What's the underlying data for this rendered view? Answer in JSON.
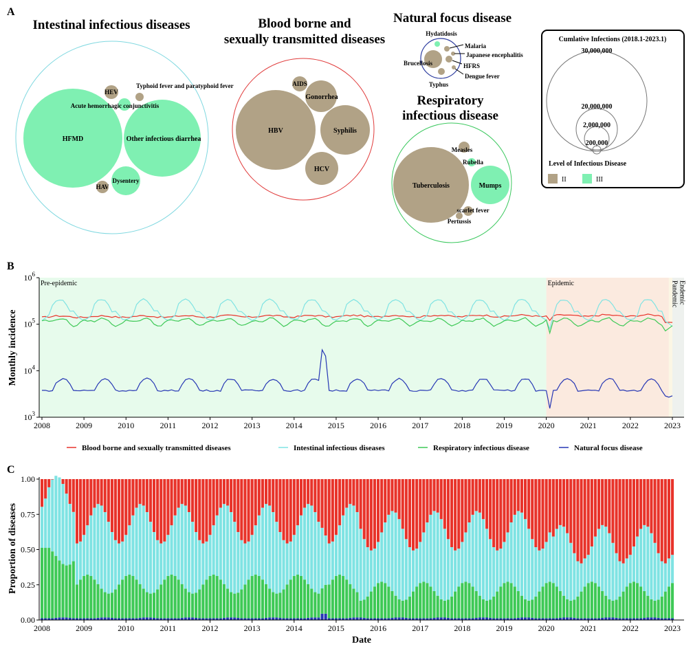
{
  "panel_labels": {
    "a": "A",
    "b": "B",
    "c": "C"
  },
  "panel_a": {
    "groups": [
      {
        "title_lines": [
          "Intestinal infectious diseases"
        ],
        "ring_color": "#7fd8e0",
        "bubbles": [
          {
            "label": "HFMD",
            "level": "III"
          },
          {
            "label": "Other infectious diarrhea",
            "level": "III"
          },
          {
            "label": "Dysentery",
            "level": "III"
          },
          {
            "label": "Acute hemorrhagic conjunctivitis",
            "level": "III"
          },
          {
            "label": "HEV",
            "level": "II"
          },
          {
            "label": "HAV",
            "level": "II"
          },
          {
            "label": "Typhoid fever and paratyphoid fever",
            "level": "II"
          }
        ]
      },
      {
        "title_lines": [
          "Blood borne and",
          "sexually transmitted diseases"
        ],
        "ring_color": "#e03a3a",
        "bubbles": [
          {
            "label": "HBV",
            "level": "II"
          },
          {
            "label": "Syphilis",
            "level": "II"
          },
          {
            "label": "Gonorrhea",
            "level": "II"
          },
          {
            "label": "HCV",
            "level": "II"
          },
          {
            "label": "AIDS",
            "level": "II"
          }
        ]
      },
      {
        "title_lines": [
          "Natural focus disease"
        ],
        "ring_color": "#2a3a9e",
        "bubbles": [
          {
            "label": "Brucellosis",
            "level": "II"
          },
          {
            "label": "Hydatidosis",
            "level": "III"
          },
          {
            "label": "Malaria",
            "level": "II"
          },
          {
            "label": "Japanese encephalitis",
            "level": "II"
          },
          {
            "label": "HFRS",
            "level": "II"
          },
          {
            "label": "Dengue fever",
            "level": "II"
          },
          {
            "label": "Typhus",
            "level": "II"
          }
        ]
      },
      {
        "title_lines": [
          "Respiratory",
          "infectious disease"
        ],
        "ring_color": "#3bc85e",
        "bubbles": [
          {
            "label": "Tuberculosis",
            "level": "II"
          },
          {
            "label": "Mumps",
            "level": "III"
          },
          {
            "label": "Measles",
            "level": "II"
          },
          {
            "label": "Rubella",
            "level": "III"
          },
          {
            "label": "scarlet fever",
            "level": "II"
          },
          {
            "label": "Pertussis",
            "level": "II"
          }
        ]
      }
    ],
    "size_legend": {
      "title": "Cumlative Infections (2018.1-2023.1)",
      "values": [
        "30,000,000",
        "20,000,000",
        "2,000,000",
        "200,000"
      ],
      "level_title": "Level of Infectious Disease",
      "levels": [
        {
          "label": "II",
          "color": "#b1a286"
        },
        {
          "label": "III",
          "color": "#7ff0b2"
        }
      ]
    }
  },
  "chart_data": [
    {
      "type": "line",
      "panel": "B",
      "ylabel": "Monthly incidence",
      "yscale": "log",
      "ylim": [
        1000,
        1000000
      ],
      "y_ticks": [
        "10^3",
        "10^4",
        "10^5",
        "10^6"
      ],
      "x_ticks": [
        "2008",
        "2009",
        "2010",
        "2011",
        "2012",
        "2013",
        "2014",
        "2015",
        "2016",
        "2017",
        "2018",
        "2019",
        "2020",
        "2021",
        "2022",
        "2023"
      ],
      "xlim": [
        "2008-01",
        "2023-01"
      ],
      "periods": [
        {
          "label": "Pre-epidemic",
          "start": "2008-01",
          "end": "2019-12",
          "color": "#e7fbec"
        },
        {
          "label": "Epidemic",
          "start": "2020-01",
          "end": "2022-11",
          "color": "#fbeadf"
        },
        {
          "label": "Pandemic",
          "start": "2022-12",
          "end": "2022-12",
          "color": "#fbf6e4"
        },
        {
          "label": "Endemic",
          "start": "2023-01",
          "end": "2023-01",
          "color": "#eef1ee"
        }
      ],
      "series": [
        {
          "name": "Blood borne and sexually transmitted diseases",
          "color": "#e8332a",
          "base": 145000,
          "amp": 0.04,
          "trend": 0.004,
          "covid": 0.8
        },
        {
          "name": "Intestinal infectious diseases",
          "color": "#7fe3e3",
          "base": 190000,
          "amp": 0.36,
          "trend": 0.0,
          "covid": 0.6
        },
        {
          "name": "Respiratory infectious disease",
          "color": "#3ec956",
          "base": 115000,
          "amp": 0.12,
          "trend": 0.0,
          "covid": 0.55
        },
        {
          "name": "Natural focus disease",
          "color": "#2536b4",
          "base": 5000,
          "amp": 0.18,
          "trend": 0.0,
          "covid": 0.4
        }
      ]
    },
    {
      "type": "bar",
      "panel": "C",
      "stacked": true,
      "ylabel": "Proportion of diseases",
      "xlabel": "Date",
      "ylim": [
        0,
        1
      ],
      "y_ticks": [
        "0.00",
        "0.25",
        "0.50",
        "0.75",
        "1.00"
      ],
      "x_ticks": [
        "2008",
        "2009",
        "2010",
        "2011",
        "2012",
        "2013",
        "2014",
        "2015",
        "2016",
        "2017",
        "2018",
        "2019",
        "2020",
        "2021",
        "2022",
        "2023"
      ],
      "series_order": [
        "Natural focus disease",
        "Respiratory infectious disease",
        "Intestinal infectious diseases",
        "Blood borne and sexually transmitted diseases"
      ],
      "colors": [
        "#2536b4",
        "#3ec956",
        "#7fe3e3",
        "#e8332a"
      ]
    }
  ]
}
